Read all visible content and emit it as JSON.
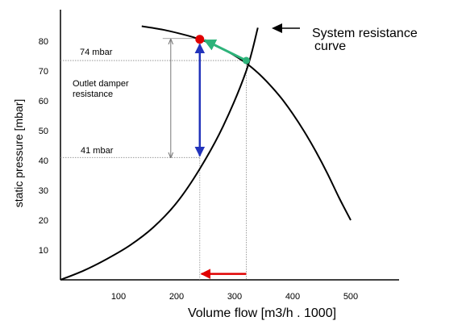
{
  "chart_data": {
    "type": "line",
    "xlabel": "Volume flow [m3/h . 1000]",
    "ylabel": "static pressure [mbar]",
    "xlim": [
      0,
      560
    ],
    "ylim": [
      0,
      90
    ],
    "x_ticks": [
      100,
      200,
      300,
      400,
      500
    ],
    "y_ticks": [
      10,
      20,
      30,
      40,
      50,
      60,
      70,
      80
    ],
    "grid": false,
    "series": [
      {
        "key": "fan",
        "color": "#000000",
        "x": [
          140,
          180,
          220,
          240,
          260,
          290,
          320,
          340,
          360,
          380,
          400,
          420,
          440,
          460,
          480,
          500
        ],
        "y": [
          85,
          83.7,
          81.8,
          80.6,
          79.1,
          76.3,
          72.6,
          69.4,
          65.5,
          61.0,
          55.7,
          49.7,
          43.0,
          35.6,
          27.5,
          20
        ]
      },
      {
        "key": "system",
        "color": "#000000",
        "x": [
          0,
          40,
          80,
          120,
          160,
          200,
          240,
          280,
          320,
          340
        ],
        "y": [
          0,
          3.1,
          7.0,
          11.6,
          17.6,
          25.8,
          37.2,
          51.4,
          70.0,
          84.5
        ]
      }
    ],
    "points": [
      {
        "key": "original",
        "x": 240,
        "y": 80.6,
        "color": "#e00000"
      },
      {
        "key": "intersection",
        "x": 320,
        "y": 73.5,
        "color": "#2db37a"
      }
    ],
    "annotations": {
      "p74": {
        "label": "74 mbar",
        "y": 73.5
      },
      "p41": {
        "label": "41 mbar",
        "y": 41
      },
      "damper_label": [
        "Outlet damper",
        "resistance"
      ],
      "system_label": [
        "System resistance",
        "curve"
      ],
      "damper_bracket": {
        "y_top": 80.6,
        "y_bottom": 41,
        "x": 190
      },
      "vertical_arrow": {
        "x": 240,
        "y_from": 80.6,
        "y_to": 41,
        "color": "#2233bb"
      },
      "green_arrow": {
        "x_from": 320,
        "y_from": 73.5,
        "x_to": 240,
        "y_to": 80.6,
        "color": "#2db37a"
      },
      "red_arrow": {
        "x_from": 320,
        "x_to": 240,
        "y": 2,
        "color": "#e00000"
      }
    }
  }
}
